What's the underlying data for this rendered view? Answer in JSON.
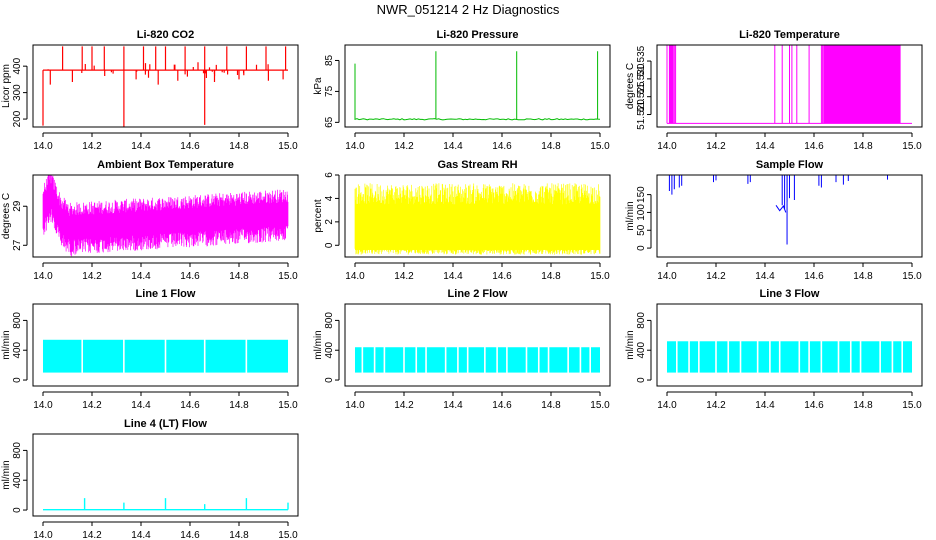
{
  "title": "NWR_051214  2 Hz Diagnostics",
  "chart_data": [
    {
      "type": "line",
      "title": "Li-820 CO2",
      "ylabel": "Licor ppm",
      "color": "#ff0000",
      "style": "co2",
      "x": [
        14.0,
        15.0
      ],
      "xticks": [
        14.0,
        14.2,
        14.4,
        14.6,
        14.8,
        15.0
      ],
      "xtick_labels": [
        "14.0",
        "14.2",
        "14.4",
        "14.6",
        "14.8",
        "15.0"
      ],
      "ylim": [
        170,
        480
      ],
      "yticks": [
        200,
        300,
        400
      ],
      "ytick_labels": [
        "200",
        "300",
        "400"
      ],
      "baseline": 385,
      "spike_low": 175,
      "spike_high": 475
    },
    {
      "type": "line",
      "title": "Li-820 Pressure",
      "ylabel": "kPa",
      "color": "#00bb00",
      "style": "pressure",
      "x": [
        14.0,
        15.0
      ],
      "xticks": [
        14.0,
        14.2,
        14.4,
        14.6,
        14.8,
        15.0
      ],
      "xtick_labels": [
        "14.0",
        "14.2",
        "14.4",
        "14.6",
        "14.8",
        "15.0"
      ],
      "ylim": [
        63.5,
        90
      ],
      "yticks": [
        65,
        75,
        85
      ],
      "ytick_labels": [
        "65",
        "75",
        "85"
      ],
      "baseline": 66,
      "spikes": [
        [
          14.0,
          84
        ],
        [
          14.33,
          88
        ],
        [
          14.66,
          88
        ],
        [
          14.99,
          88
        ]
      ]
    },
    {
      "type": "line",
      "title": "Li-820 Temperature",
      "ylabel": "degrees C",
      "color": "#ff00ff",
      "style": "temp",
      "x": [
        14.0,
        15.0
      ],
      "xticks": [
        14.0,
        14.2,
        14.4,
        14.6,
        14.8,
        15.0
      ],
      "xtick_labels": [
        "14.0",
        "14.2",
        "14.4",
        "14.6",
        "14.8",
        "15.0"
      ],
      "ylim": [
        51.5165,
        51.5395
      ],
      "yticks": [
        51.52,
        51.525,
        51.53,
        51.535
      ],
      "ytick_labels": [
        "51.520",
        "51.525",
        "51.530",
        "51.535"
      ],
      "low": 51.5175,
      "high": 51.5395
    },
    {
      "type": "line",
      "title": "Ambient Box Temperature",
      "ylabel": "degrees C",
      "color": "#ff00ff",
      "style": "ambient",
      "x": [
        14.0,
        15.0
      ],
      "xticks": [
        14.0,
        14.2,
        14.4,
        14.6,
        14.8,
        15.0
      ],
      "xtick_labels": [
        "14.0",
        "14.2",
        "14.4",
        "14.6",
        "14.8",
        "15.0"
      ],
      "ylim": [
        26.4,
        30.6
      ],
      "yticks": [
        27,
        29
      ],
      "ytick_labels": [
        "27",
        "29"
      ],
      "mean": 28.4
    },
    {
      "type": "line",
      "title": "Gas Stream RH",
      "ylabel": "percent",
      "color": "#ffff00",
      "style": "rh",
      "x": [
        14.0,
        15.0
      ],
      "xticks": [
        14.0,
        14.2,
        14.4,
        14.6,
        14.8,
        15.0
      ],
      "xtick_labels": [
        "14.0",
        "14.2",
        "14.4",
        "14.6",
        "14.8",
        "15.0"
      ],
      "ylim": [
        -1,
        6
      ],
      "yticks": [
        0,
        2,
        4,
        6
      ],
      "ytick_labels": [
        "0",
        "2",
        "4",
        "6"
      ],
      "low": 0,
      "high": 5
    },
    {
      "type": "line",
      "title": "Sample Flow",
      "ylabel": "ml/min",
      "color": "#0000ff",
      "style": "sample",
      "x": [
        14.0,
        15.0
      ],
      "xticks": [
        14.0,
        14.2,
        14.4,
        14.6,
        14.8,
        15.0
      ],
      "xtick_labels": [
        "14.0",
        "14.2",
        "14.4",
        "14.6",
        "14.8",
        "15.0"
      ],
      "ylim": [
        -25,
        205
      ],
      "yticks": [
        0,
        50,
        100,
        150
      ],
      "ytick_labels": [
        "0",
        "50",
        "100",
        "150"
      ],
      "baseline": 205,
      "dip_min": 10
    },
    {
      "type": "line",
      "title": "Line 1 Flow",
      "ylabel": "ml/min",
      "color": "#00ffff",
      "style": "band",
      "x": [
        14.0,
        15.0
      ],
      "xticks": [
        14.0,
        14.2,
        14.4,
        14.6,
        14.8,
        15.0
      ],
      "xtick_labels": [
        "14.0",
        "14.2",
        "14.4",
        "14.6",
        "14.8",
        "15.0"
      ],
      "ylim": [
        -80,
        1020
      ],
      "yticks": [
        0,
        400,
        800
      ],
      "ytick_labels": [
        "0",
        "400",
        "800"
      ],
      "low": 100,
      "high": 540,
      "gaps": [
        14.16,
        14.33,
        14.5,
        14.66,
        14.83
      ]
    },
    {
      "type": "line",
      "title": "Line 2 Flow",
      "ylabel": "ml/min",
      "color": "#00ffff",
      "style": "band",
      "x": [
        14.0,
        15.0
      ],
      "xticks": [
        14.0,
        14.2,
        14.4,
        14.6,
        14.8,
        15.0
      ],
      "xtick_labels": [
        "14.0",
        "14.2",
        "14.4",
        "14.6",
        "14.8",
        "15.0"
      ],
      "ylim": [
        -80,
        1020
      ],
      "yticks": [
        0,
        400,
        800
      ],
      "ytick_labels": [
        "0",
        "400",
        "800"
      ],
      "low": 100,
      "high": 440,
      "gaps": [
        14.03,
        14.08,
        14.12,
        14.2,
        14.25,
        14.29,
        14.37,
        14.42,
        14.46,
        14.53,
        14.58,
        14.62,
        14.7,
        14.75,
        14.79,
        14.87,
        14.92,
        14.96
      ]
    },
    {
      "type": "line",
      "title": "Line 3 Flow",
      "ylabel": "ml/min",
      "color": "#00ffff",
      "style": "band",
      "x": [
        14.0,
        15.0
      ],
      "xticks": [
        14.0,
        14.2,
        14.4,
        14.6,
        14.8,
        15.0
      ],
      "xtick_labels": [
        "14.0",
        "14.2",
        "14.4",
        "14.6",
        "14.8",
        "15.0"
      ],
      "ylim": [
        -80,
        1020
      ],
      "yticks": [
        0,
        400,
        800
      ],
      "ytick_labels": [
        "0",
        "400",
        "800"
      ],
      "low": 100,
      "high": 520,
      "gaps": [
        14.04,
        14.09,
        14.13,
        14.2,
        14.25,
        14.3,
        14.37,
        14.42,
        14.46,
        14.54,
        14.58,
        14.63,
        14.7,
        14.75,
        14.79,
        14.87,
        14.92,
        14.96
      ]
    },
    {
      "type": "line",
      "title": "Line 4 (LT) Flow",
      "ylabel": "ml/min",
      "color": "#00ffff",
      "style": "lt",
      "x": [
        14.0,
        15.0
      ],
      "xticks": [
        14.0,
        14.2,
        14.4,
        14.6,
        14.8,
        15.0
      ],
      "xtick_labels": [
        "14.0",
        "14.2",
        "14.4",
        "14.6",
        "14.8",
        "15.0"
      ],
      "ylim": [
        -80,
        1020
      ],
      "yticks": [
        0,
        400,
        800
      ],
      "ytick_labels": [
        "0",
        "400",
        "800"
      ],
      "baseline": 5,
      "spikes": [
        [
          14.17,
          160
        ],
        [
          14.33,
          100
        ],
        [
          14.5,
          160
        ],
        [
          14.66,
          80
        ],
        [
          14.83,
          160
        ],
        [
          15.0,
          100
        ]
      ]
    }
  ]
}
